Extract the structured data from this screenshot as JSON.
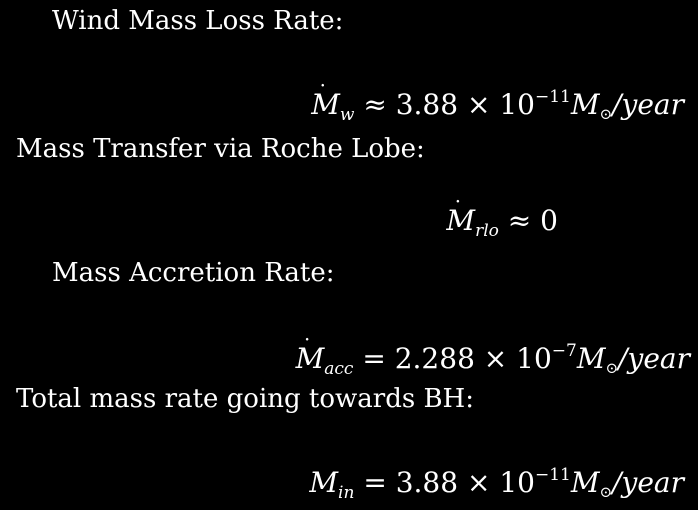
{
  "sections": [
    {
      "heading": "Wind Mass Loss Rate:",
      "symbol": "M",
      "dotted": true,
      "subscript": "w",
      "relation": "≈",
      "value": "3.88 × 10",
      "exponent": "−11",
      "unit_main": "M",
      "unit_sun": "⊙",
      "unit_rest": "/year"
    },
    {
      "heading": "Mass Transfer via Roche Lobe:",
      "symbol": "M",
      "dotted": true,
      "subscript": "rlo",
      "relation": "≈",
      "value": "0"
    },
    {
      "heading": "Mass Accretion Rate:",
      "symbol": "M",
      "dotted": true,
      "subscript": "acc",
      "relation": "=",
      "value": "2.288 × 10",
      "exponent": "−7",
      "unit_main": "M",
      "unit_sun": "⊙",
      "unit_rest": "/year"
    },
    {
      "heading": "Total mass rate going towards BH:",
      "symbol": "M",
      "dotted": false,
      "subscript": "in",
      "relation": "=",
      "value": "3.88 × 10",
      "exponent": "−11",
      "unit_main": "M",
      "unit_sun": "⊙",
      "unit_rest": "/year"
    }
  ]
}
